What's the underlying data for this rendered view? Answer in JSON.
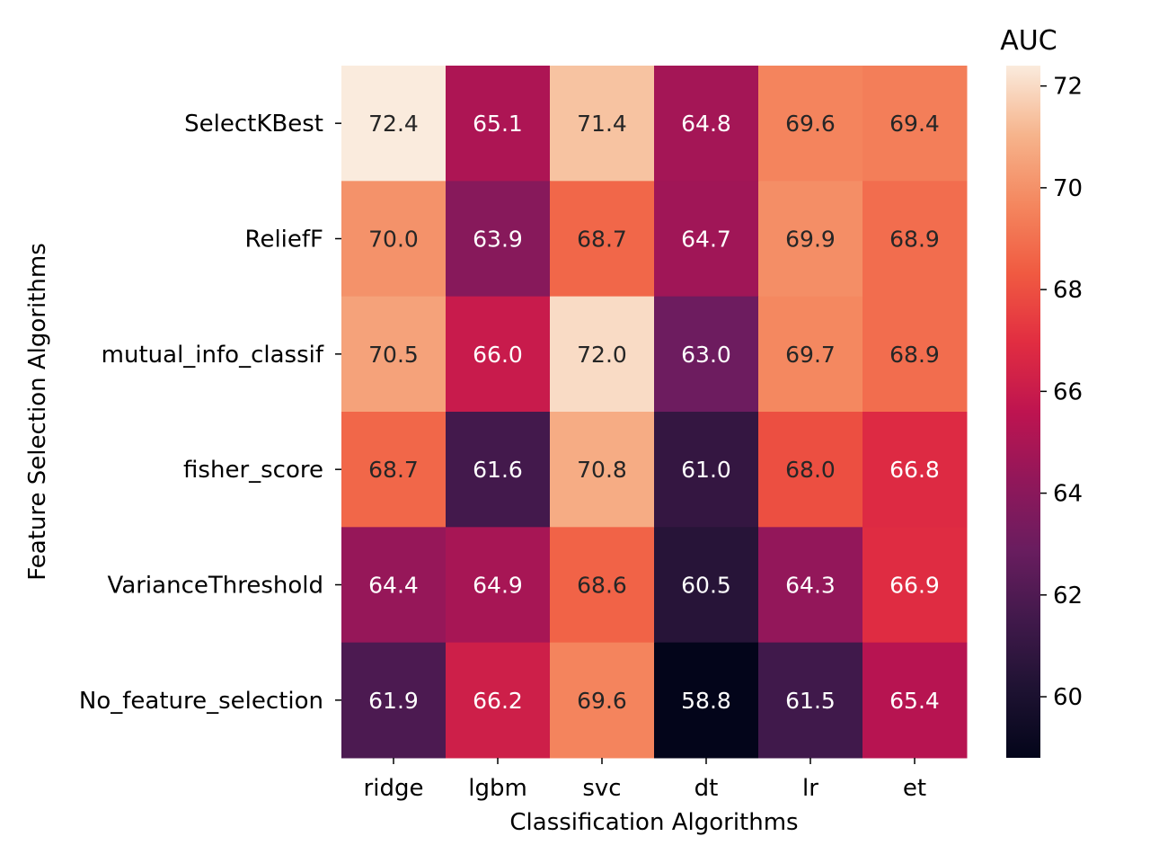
{
  "chart_data": {
    "type": "heatmap",
    "title": "",
    "xlabel": "Classification Algorithms",
    "ylabel": "Feature Selection Algorithms",
    "x_categories": [
      "ridge",
      "lgbm",
      "svc",
      "dt",
      "lr",
      "et"
    ],
    "y_categories": [
      "SelectKBest",
      "ReliefF",
      "mutual_info_classif",
      "fisher_score",
      "VarianceThreshold",
      "No_feature_selection"
    ],
    "values": [
      [
        72.4,
        65.1,
        71.4,
        64.8,
        69.6,
        69.4
      ],
      [
        70.0,
        63.9,
        68.7,
        64.7,
        69.9,
        68.9
      ],
      [
        70.5,
        66.0,
        72.0,
        63.0,
        69.7,
        68.9
      ],
      [
        68.7,
        61.6,
        70.8,
        61.0,
        68.0,
        66.8
      ],
      [
        64.4,
        64.9,
        68.6,
        60.5,
        64.3,
        66.9
      ],
      [
        61.9,
        66.2,
        69.6,
        58.8,
        61.5,
        65.4
      ]
    ],
    "value_format": "0.1f",
    "colorbar": {
      "label": "AUC",
      "min": 58.8,
      "max": 72.4,
      "ticks": [
        60,
        62,
        64,
        66,
        68,
        70,
        72
      ],
      "colormap": "rocket"
    },
    "grid": false
  }
}
